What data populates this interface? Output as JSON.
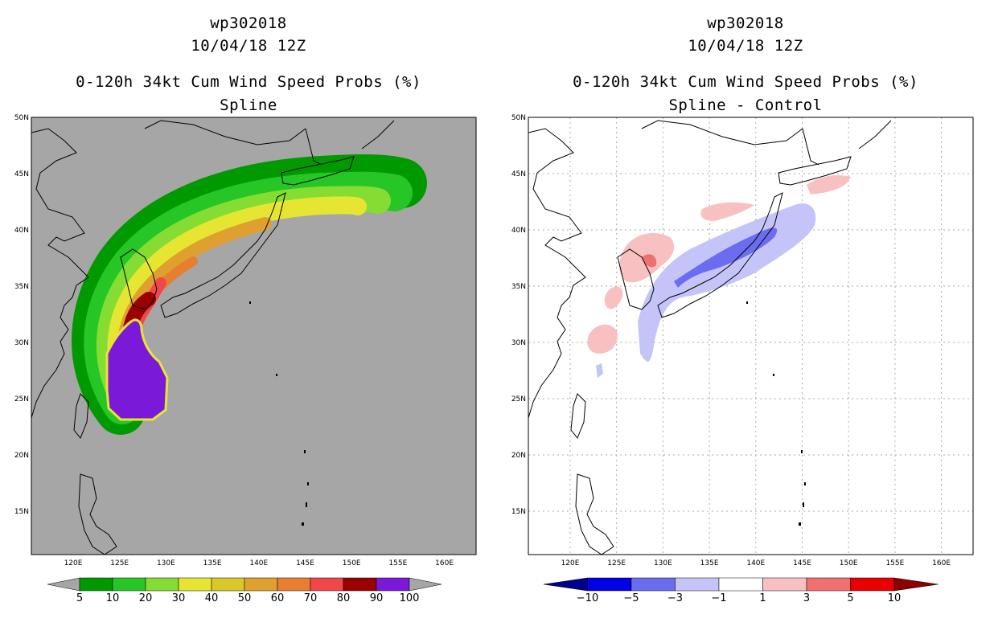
{
  "left_panel": {
    "storm_id": "wp302018",
    "datetime": "10/04/18 12Z",
    "product": "0-120h 34kt Cum Wind Speed Probs (%)",
    "subtitle": "Spline",
    "lat_labels": [
      "50N",
      "45N",
      "40N",
      "35N",
      "30N",
      "25N",
      "20N",
      "15N"
    ],
    "lon_labels": [
      "120E",
      "125E",
      "130E",
      "135E",
      "140E",
      "145E",
      "150E",
      "155E",
      "160E"
    ],
    "colorbar": {
      "labels": [
        "5",
        "10",
        "20",
        "30",
        "40",
        "50",
        "60",
        "70",
        "80",
        "90",
        "100"
      ],
      "colors": [
        "#009a00",
        "#26c626",
        "#85dc32",
        "#e6e632",
        "#d8c82a",
        "#e0a030",
        "#e87f30",
        "#f04848",
        "#9a0000",
        "#7a1ad8"
      ]
    },
    "background_color": "#a6a6a6"
  },
  "right_panel": {
    "storm_id": "wp302018",
    "datetime": "10/04/18 12Z",
    "product": "0-120h 34kt Cum Wind Speed Probs (%)",
    "subtitle": "Spline - Control",
    "lat_labels": [
      "50N",
      "45N",
      "40N",
      "35N",
      "30N",
      "25N",
      "20N",
      "15N"
    ],
    "lon_labels": [
      "120E",
      "125E",
      "130E",
      "135E",
      "140E",
      "145E",
      "150E",
      "155E",
      "160E"
    ],
    "colorbar": {
      "labels": [
        "−10",
        "−5",
        "−3",
        "−1",
        "1",
        "3",
        "5",
        "10"
      ],
      "colors": [
        "#00008c",
        "#0000e6",
        "#6c6cf0",
        "#c4c4f8",
        "#ffffff",
        "#f8c0c0",
        "#f07070",
        "#e80000",
        "#8c0000"
      ]
    }
  }
}
